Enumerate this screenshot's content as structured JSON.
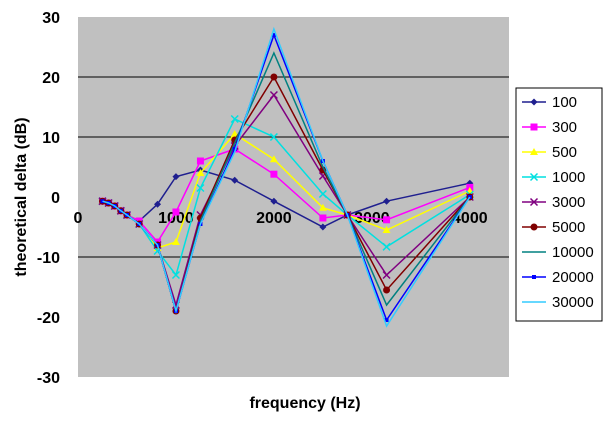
{
  "chart_data": {
    "type": "line",
    "xlabel": "frequency (Hz)",
    "ylabel": "theoretical delta (dB)",
    "xlim": [
      0,
      4400
    ],
    "ylim": [
      -30,
      30
    ],
    "x_ticks": [
      0,
      1000,
      2000,
      3000,
      4000
    ],
    "y_ticks": [
      -30,
      -20,
      -10,
      0,
      10,
      20,
      30
    ],
    "y_gridlines": [
      -10,
      10,
      20
    ],
    "grid": true,
    "background": "#c0c0c0",
    "legend_position": "right",
    "x": [
      250,
      312,
      375,
      437,
      500,
      625,
      812,
      1000,
      1250,
      1600,
      2000,
      2500,
      2750,
      3150,
      4000
    ],
    "series": [
      {
        "name": "100",
        "color": "#1f1f8f",
        "marker": "diamond",
        "values": [
          -0.7,
          -1.0,
          -1.5,
          -2.3,
          -3.0,
          -4.0,
          -1.2,
          3.4,
          4.5,
          2.8,
          -0.7,
          -5.0,
          -3.0,
          -0.7,
          2.3
        ]
      },
      {
        "name": "300",
        "color": "#ff00ff",
        "marker": "square",
        "values": [
          -0.7,
          -1.0,
          -1.5,
          -2.3,
          -3.0,
          -4.0,
          -7.5,
          -2.5,
          6.0,
          8.0,
          3.8,
          -3.5,
          -3.0,
          -3.8,
          1.6
        ]
      },
      {
        "name": "500",
        "color": "#ffff00",
        "marker": "triangle",
        "values": [
          -0.7,
          -1.0,
          -1.5,
          -2.3,
          -3.0,
          -4.5,
          -8.5,
          -7.5,
          4.0,
          10.5,
          6.3,
          -1.8,
          -3.0,
          -5.5,
          1.0
        ]
      },
      {
        "name": "1000",
        "color": "#00e0e0",
        "marker": "x",
        "values": [
          -0.7,
          -1.0,
          -1.5,
          -2.3,
          -3.0,
          -4.5,
          -9.0,
          -13.0,
          1.5,
          13.0,
          10.0,
          0.5,
          -3.0,
          -8.3,
          0.4
        ]
      },
      {
        "name": "3000",
        "color": "#800080",
        "marker": "x",
        "values": [
          -0.7,
          -1.0,
          -1.5,
          -2.3,
          -3.0,
          -4.5,
          -8.0,
          -18.0,
          -3.0,
          8.5,
          17.0,
          3.5,
          -3.0,
          -13.0,
          0.0
        ]
      },
      {
        "name": "5000",
        "color": "#800000",
        "marker": "circle",
        "values": [
          -0.7,
          -1.0,
          -1.5,
          -2.3,
          -3.0,
          -4.5,
          -8.0,
          -19.0,
          -3.5,
          9.5,
          20.0,
          4.5,
          -3.0,
          -15.5,
          0.0
        ]
      },
      {
        "name": "10000",
        "color": "#008080",
        "marker": "none",
        "values": [
          -0.7,
          -1.0,
          -1.5,
          -2.3,
          -3.0,
          -4.5,
          -8.0,
          -19.0,
          -4.0,
          9.0,
          24.0,
          5.0,
          -3.0,
          -18.0,
          0.0
        ]
      },
      {
        "name": "20000",
        "color": "#0000ff",
        "marker": "dot",
        "values": [
          -0.7,
          -1.0,
          -1.5,
          -2.3,
          -3.0,
          -4.5,
          -8.0,
          -19.0,
          -4.5,
          8.0,
          27.0,
          6.0,
          -3.0,
          -20.5,
          0.0
        ]
      },
      {
        "name": "30000",
        "color": "#33ccff",
        "marker": "none",
        "values": [
          -0.7,
          -1.0,
          -1.5,
          -2.3,
          -3.0,
          -4.5,
          -8.0,
          -19.0,
          -4.5,
          7.5,
          28.0,
          6.0,
          -3.0,
          -21.5,
          0.0
        ]
      }
    ]
  }
}
